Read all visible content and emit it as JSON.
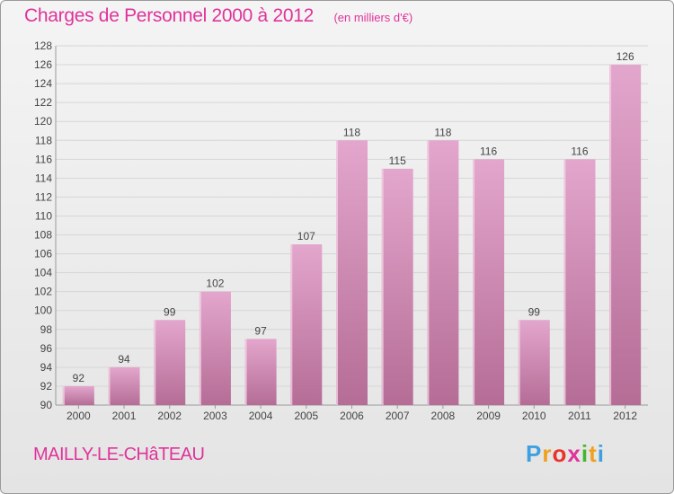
{
  "title": "Charges de Personnel 2000 à 2012",
  "unit_note": "(en milliers d'€)",
  "place": "MAILLY-LE-CHâTEAU",
  "brand": [
    "P",
    "r",
    "o",
    "x",
    "i",
    "t",
    "i"
  ],
  "colors": {
    "title": "#e0339b",
    "bar_top": "#e3a6cc",
    "bar_bottom": "#b56d96",
    "bar_edge": "#f2cfe3"
  },
  "chart_data": {
    "type": "bar",
    "categories": [
      "2000",
      "2001",
      "2002",
      "2003",
      "2004",
      "2005",
      "2006",
      "2007",
      "2008",
      "2009",
      "2010",
      "2011",
      "2012"
    ],
    "values": [
      92,
      94,
      99,
      102,
      97,
      107,
      118,
      115,
      118,
      116,
      99,
      116,
      126
    ],
    "ylim": [
      90,
      128
    ],
    "yticks": [
      90,
      92,
      94,
      96,
      98,
      100,
      102,
      104,
      106,
      108,
      110,
      112,
      114,
      116,
      118,
      120,
      122,
      124,
      126,
      128
    ],
    "grid": true,
    "legend": "none"
  }
}
